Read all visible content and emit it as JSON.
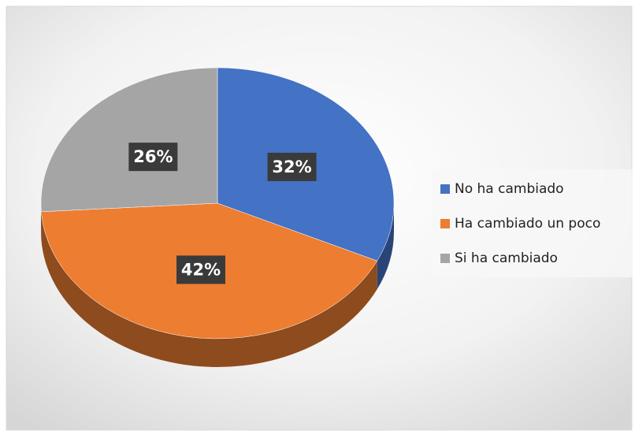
{
  "chart_data": {
    "type": "pie",
    "categories": [
      "No ha cambiado",
      "Ha cambiado un poco",
      "Si ha cambiado"
    ],
    "values": [
      32,
      42,
      26
    ],
    "value_labels": [
      "32%",
      "42%",
      "26%"
    ],
    "colors": [
      "#4472c4",
      "#ed7d31",
      "#a5a5a5"
    ],
    "legend": "right"
  }
}
